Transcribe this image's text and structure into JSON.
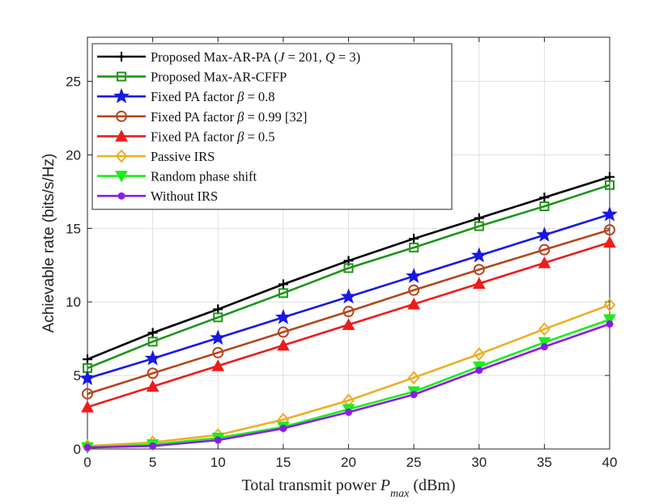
{
  "chart_data": {
    "type": "line",
    "title": "",
    "xlabel": "Total transmit power P_max (dBm)",
    "xlabel_parts": {
      "pre": "Total transmit power ",
      "var": "P",
      "sub": "max",
      "post": " (dBm)"
    },
    "ylabel": "Achievable rate (bits/s/Hz)",
    "x": [
      0,
      5,
      10,
      15,
      20,
      25,
      30,
      35,
      40
    ],
    "xlim": [
      0,
      40
    ],
    "ylim": [
      0,
      28
    ],
    "xticks": [
      0,
      5,
      10,
      15,
      20,
      25,
      30,
      35,
      40
    ],
    "yticks": [
      0,
      5,
      10,
      15,
      20,
      25
    ],
    "grid": true,
    "legend_position": "top-left",
    "series": [
      {
        "name": "Proposed Max-AR-PA (J = 201, Q = 3)",
        "color": "#000000",
        "marker": "plus",
        "values": [
          6.1,
          7.9,
          9.5,
          11.2,
          12.8,
          14.3,
          15.7,
          17.1,
          18.5
        ]
      },
      {
        "name": "Proposed Max-AR-CFFP",
        "color": "#1e9618",
        "marker": "square",
        "values": [
          5.5,
          7.3,
          8.95,
          10.6,
          12.3,
          13.7,
          15.15,
          16.5,
          17.95
        ]
      },
      {
        "name": "Fixed PA factor β = 0.8",
        "color": "#1818e6",
        "marker": "star",
        "values": [
          4.8,
          6.15,
          7.55,
          8.95,
          10.35,
          11.75,
          13.15,
          14.55,
          15.95
        ]
      },
      {
        "name": "Fixed PA factor β = 0.99 [32]",
        "color": "#b5461c",
        "marker": "circle",
        "values": [
          3.75,
          5.15,
          6.55,
          7.95,
          9.35,
          10.8,
          12.2,
          13.55,
          14.9
        ]
      },
      {
        "name": "Fixed PA factor β = 0.5",
        "color": "#ee1c1c",
        "marker": "triangle-up",
        "values": [
          2.85,
          4.25,
          5.65,
          7.05,
          8.45,
          9.85,
          11.25,
          12.65,
          14.05
        ]
      },
      {
        "name": "Passive IRS",
        "color": "#eeae22",
        "marker": "diamond",
        "values": [
          0.2,
          0.45,
          0.95,
          2.0,
          3.3,
          4.85,
          6.45,
          8.15,
          9.8
        ]
      },
      {
        "name": "Random phase shift",
        "color": "#1aee1a",
        "marker": "triangle-down",
        "values": [
          0.1,
          0.3,
          0.75,
          1.5,
          2.7,
          3.9,
          5.6,
          7.25,
          8.8
        ]
      },
      {
        "name": "Without IRS",
        "color": "#8c1ce6",
        "marker": "dot",
        "values": [
          0.1,
          0.2,
          0.6,
          1.4,
          2.5,
          3.7,
          5.35,
          6.95,
          8.5
        ]
      }
    ],
    "legend": [
      {
        "pre": "Proposed Max-AR-PA (",
        "math": "J",
        "mid": " = 201, ",
        "math2": "Q",
        "post": " = 3)"
      },
      {
        "pre": "Proposed Max-AR-CFFP",
        "math": "",
        "mid": "",
        "math2": "",
        "post": ""
      },
      {
        "pre": "Fixed PA factor ",
        "math": "β",
        "mid": " = 0.8",
        "math2": "",
        "post": ""
      },
      {
        "pre": "Fixed PA factor ",
        "math": "β",
        "mid": " = 0.99 [32]",
        "math2": "",
        "post": ""
      },
      {
        "pre": "Fixed PA factor ",
        "math": "β",
        "mid": " = 0.5",
        "math2": "",
        "post": ""
      },
      {
        "pre": "Passive IRS",
        "math": "",
        "mid": "",
        "math2": "",
        "post": ""
      },
      {
        "pre": "Random phase shift",
        "math": "",
        "mid": "",
        "math2": "",
        "post": ""
      },
      {
        "pre": "Without IRS",
        "math": "",
        "mid": "",
        "math2": "",
        "post": ""
      }
    ]
  }
}
